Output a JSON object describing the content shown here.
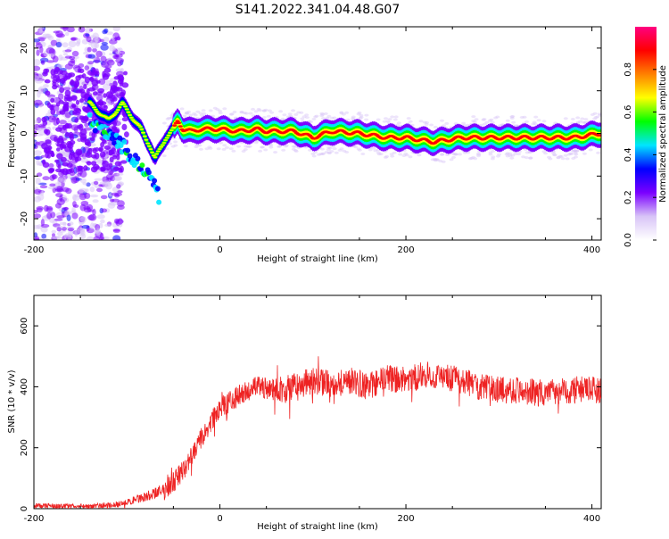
{
  "title": "S141.2022.341.04.48.G07",
  "chart_data": [
    {
      "type": "heatmap",
      "xlabel": "Height of straight line (km)",
      "ylabel": "Frequency (Hz)",
      "xlim": [
        -200,
        410
      ],
      "ylim": [
        -25,
        25
      ],
      "x_ticks": [
        "-200",
        "0",
        "200",
        "400"
      ],
      "y_ticks": [
        "-20",
        "-10",
        "0",
        "10",
        "20"
      ],
      "colorbar": {
        "label": "Normalized spectral amplitude",
        "range": [
          0,
          1
        ],
        "ticks": [
          "0.0",
          "0.2",
          "0.4",
          "0.6",
          "0.8"
        ],
        "colors": [
          "#ffffff",
          "#d8c4f7",
          "#7b00ff",
          "#0000ff",
          "#00e5ff",
          "#00ff00",
          "#ffff00",
          "#ff8000",
          "#ff0000",
          "#ff0080"
        ]
      },
      "ridge": {
        "x": [
          -140,
          -120,
          -105,
          -95,
          -85,
          -75,
          -70,
          -65,
          -58,
          -50,
          -45,
          -40,
          -30,
          -20,
          0,
          20,
          40,
          50,
          60,
          80,
          100,
          120,
          150,
          180,
          200,
          230,
          260,
          300,
          340,
          380,
          410
        ],
        "y": [
          7,
          3,
          7,
          4,
          1,
          -3,
          -6,
          -4,
          -1,
          1,
          3,
          1,
          0.5,
          1,
          1,
          0.5,
          1,
          0.5,
          0.5,
          0.5,
          -1,
          0.5,
          0,
          -1,
          -1,
          -2,
          -1,
          -1,
          -1,
          -1,
          0
        ]
      },
      "branch": {
        "x": [
          -140,
          -120,
          -100,
          -85,
          -70,
          -65
        ],
        "y": [
          3,
          0,
          -4,
          -8,
          -12,
          -15
        ]
      }
    },
    {
      "type": "line",
      "xlabel": "Height of straight line (km)",
      "ylabel": "SNR (10 * v/v)",
      "xlim": [
        -200,
        410
      ],
      "ylim": [
        0,
        700
      ],
      "x_ticks": [
        "-200",
        "0",
        "200",
        "400"
      ],
      "y_ticks": [
        "0",
        "200",
        "400",
        "600"
      ],
      "color": "#ee2222",
      "envelope": {
        "x": [
          -200,
          -160,
          -120,
          -100,
          -80,
          -60,
          -40,
          -20,
          0,
          20,
          40,
          60,
          80,
          100,
          120,
          140,
          160,
          180,
          200,
          220,
          240,
          260,
          280,
          300,
          320,
          340,
          360,
          380,
          410
        ],
        "y": [
          10,
          8,
          10,
          20,
          40,
          60,
          120,
          230,
          330,
          370,
          400,
          390,
          400,
          420,
          410,
          420,
          400,
          430,
          420,
          440,
          430,
          420,
          400,
          390,
          390,
          380,
          380,
          390,
          390
        ]
      }
    }
  ]
}
